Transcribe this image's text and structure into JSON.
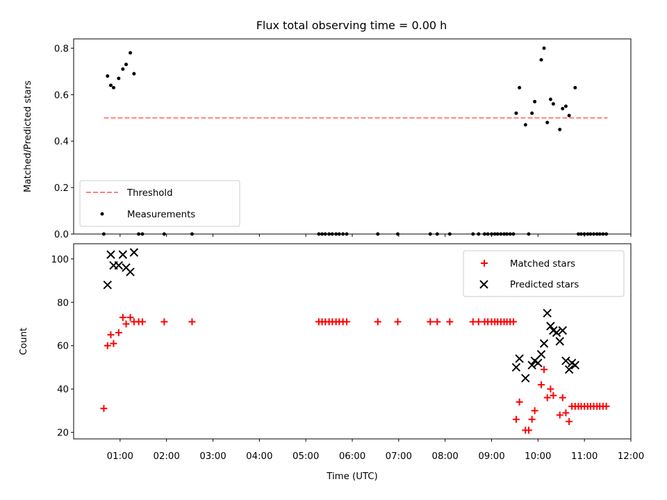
{
  "chart_data": [
    {
      "type": "scatter",
      "title": "Flux total observing time = 0.00 h",
      "ylabel": "Matched/Predicted stars",
      "xlabel": "",
      "xlim": [
        0.0,
        12.0
      ],
      "ylim": [
        0.0,
        0.84
      ],
      "yticks": [
        0.0,
        0.2,
        0.4,
        0.6,
        0.8
      ],
      "ytick_labels": [
        "0.0",
        "0.2",
        "0.4",
        "0.6",
        "0.8"
      ],
      "legend_position": "lower-left",
      "threshold": {
        "name": "Threshold",
        "color": "#ff7f7f",
        "style": "dashed",
        "y": 0.5,
        "x_start": 0.65,
        "x_end": 11.5
      },
      "series": [
        {
          "name": "Measurements",
          "color": "#000000",
          "marker": "dot",
          "x": [
            0.65,
            0.73,
            0.8,
            0.86,
            0.97,
            1.06,
            1.13,
            1.22,
            1.3,
            1.4,
            1.48,
            1.95,
            2.55,
            5.28,
            5.35,
            5.42,
            5.5,
            5.57,
            5.65,
            5.72,
            5.8,
            5.88,
            6.55,
            6.98,
            7.68,
            7.83,
            8.1,
            8.6,
            8.72,
            8.85,
            8.92,
            9.0,
            9.07,
            9.13,
            9.2,
            9.27,
            9.33,
            9.4,
            9.47,
            9.53,
            9.6,
            9.73,
            9.8,
            9.87,
            9.93,
            10.07,
            10.13,
            10.2,
            10.27,
            10.33,
            10.47,
            10.53,
            10.6,
            10.67,
            10.8,
            10.87,
            10.93,
            11.0,
            11.07,
            11.13,
            11.2,
            11.27,
            11.33,
            11.4,
            11.47
          ],
          "y": [
            0.0,
            0.68,
            0.64,
            0.63,
            0.67,
            0.71,
            0.73,
            0.78,
            0.69,
            0.0,
            0.0,
            0.0,
            0.0,
            0.0,
            0.0,
            0.0,
            0.0,
            0.0,
            0.0,
            0.0,
            0.0,
            0.0,
            0.0,
            0.0,
            0.0,
            0.0,
            0.0,
            0.0,
            0.0,
            0.0,
            0.0,
            0.0,
            0.0,
            0.0,
            0.0,
            0.0,
            0.0,
            0.0,
            0.0,
            0.52,
            0.63,
            0.47,
            0.0,
            0.52,
            0.57,
            0.75,
            0.8,
            0.48,
            0.58,
            0.56,
            0.45,
            0.54,
            0.55,
            0.51,
            0.63,
            0.0,
            0.0,
            0.0,
            0.0,
            0.0,
            0.0,
            0.0,
            0.0,
            0.0,
            0.0
          ]
        }
      ]
    },
    {
      "type": "scatter",
      "title": "",
      "ylabel": "Count",
      "xlabel": "Time (UTC)",
      "xlim": [
        0.0,
        12.0
      ],
      "ylim": [
        17,
        107
      ],
      "yticks": [
        20,
        40,
        60,
        80,
        100
      ],
      "ytick_labels": [
        "20",
        "40",
        "60",
        "80",
        "100"
      ],
      "xticks": [
        1,
        2,
        3,
        4,
        5,
        6,
        7,
        8,
        9,
        10,
        11,
        12
      ],
      "xtick_labels": [
        "01:00",
        "02:00",
        "03:00",
        "04:00",
        "05:00",
        "06:00",
        "07:00",
        "08:00",
        "09:00",
        "10:00",
        "11:00",
        "12:00"
      ],
      "legend_position": "top-right",
      "series": [
        {
          "name": "Matched stars",
          "color": "#ff0000",
          "marker": "plus",
          "x": [
            0.65,
            0.73,
            0.8,
            0.86,
            0.97,
            1.06,
            1.13,
            1.22,
            1.3,
            1.4,
            1.48,
            1.95,
            2.55,
            5.28,
            5.35,
            5.42,
            5.5,
            5.57,
            5.65,
            5.72,
            5.8,
            5.88,
            6.55,
            6.98,
            7.68,
            7.83,
            8.1,
            8.6,
            8.72,
            8.85,
            8.92,
            9.0,
            9.07,
            9.13,
            9.2,
            9.27,
            9.33,
            9.4,
            9.47,
            9.53,
            9.6,
            9.73,
            9.8,
            9.87,
            9.93,
            10.07,
            10.13,
            10.2,
            10.27,
            10.33,
            10.47,
            10.53,
            10.6,
            10.67,
            10.73,
            10.8,
            10.87,
            10.93,
            11.0,
            11.07,
            11.13,
            11.2,
            11.27,
            11.33,
            11.4,
            11.47
          ],
          "y": [
            31,
            60,
            65,
            61,
            66,
            73,
            70,
            73,
            71,
            71,
            71,
            71,
            71,
            71,
            71,
            71,
            71,
            71,
            71,
            71,
            71,
            71,
            71,
            71,
            71,
            71,
            71,
            71,
            71,
            71,
            71,
            71,
            71,
            71,
            71,
            71,
            71,
            71,
            71,
            26,
            34,
            21,
            21,
            26,
            30,
            42,
            49,
            36,
            40,
            37,
            28,
            36,
            29,
            25,
            32,
            32,
            32,
            32,
            32,
            32,
            32,
            32,
            32,
            32,
            32,
            32
          ]
        },
        {
          "name": "Predicted stars",
          "color": "#000000",
          "marker": "x",
          "x": [
            0.73,
            0.8,
            0.86,
            0.97,
            1.06,
            1.13,
            1.22,
            1.3,
            9.53,
            9.6,
            9.73,
            9.87,
            9.93,
            10.0,
            10.07,
            10.13,
            10.2,
            10.27,
            10.33,
            10.4,
            10.47,
            10.53,
            10.6,
            10.67,
            10.73,
            10.8
          ],
          "y": [
            88,
            102,
            97,
            97,
            102,
            96,
            94,
            103,
            50,
            54,
            45,
            51,
            53,
            52,
            56,
            61,
            75,
            69,
            67,
            66,
            62,
            67,
            53,
            49,
            52,
            51
          ]
        }
      ]
    }
  ]
}
